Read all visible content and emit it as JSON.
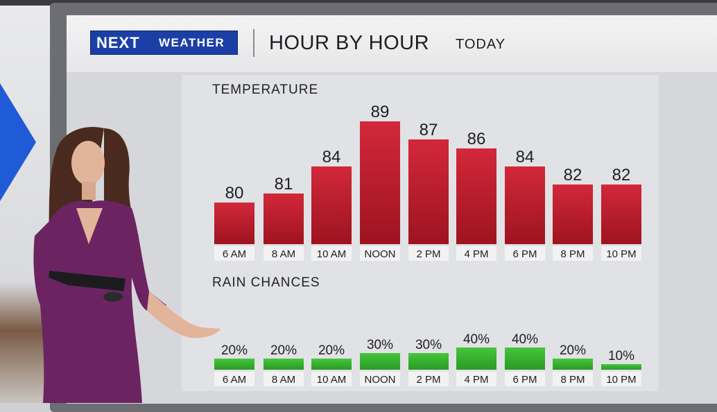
{
  "header": {
    "logo_next": "NEXT",
    "logo_weather": "WEATHER",
    "title": "HOUR BY HOUR",
    "subtitle": "TODAY"
  },
  "colors": {
    "temperature_bar": "#c0202e",
    "rain_bar": "#36b52f",
    "logo_blue": "#1b3fa6"
  },
  "chart_data": [
    {
      "type": "bar",
      "title": "TEMPERATURE",
      "categories": [
        "6 AM",
        "8 AM",
        "10 AM",
        "NOON",
        "2 PM",
        "4 PM",
        "6 PM",
        "8 PM",
        "10 PM"
      ],
      "values": [
        80,
        81,
        84,
        89,
        87,
        86,
        84,
        82,
        82
      ],
      "value_labels": [
        "80",
        "81",
        "84",
        "89",
        "87",
        "86",
        "84",
        "82",
        "82"
      ]
    },
    {
      "type": "bar",
      "title": "RAIN CHANCES",
      "categories": [
        "6 AM",
        "8 AM",
        "10 AM",
        "NOON",
        "2 PM",
        "4 PM",
        "6 PM",
        "8 PM",
        "10 PM"
      ],
      "values": [
        20,
        20,
        20,
        30,
        30,
        40,
        40,
        20,
        10
      ],
      "value_labels": [
        "20%",
        "20%",
        "20%",
        "30%",
        "30%",
        "40%",
        "40%",
        "20%",
        "10%"
      ]
    }
  ]
}
